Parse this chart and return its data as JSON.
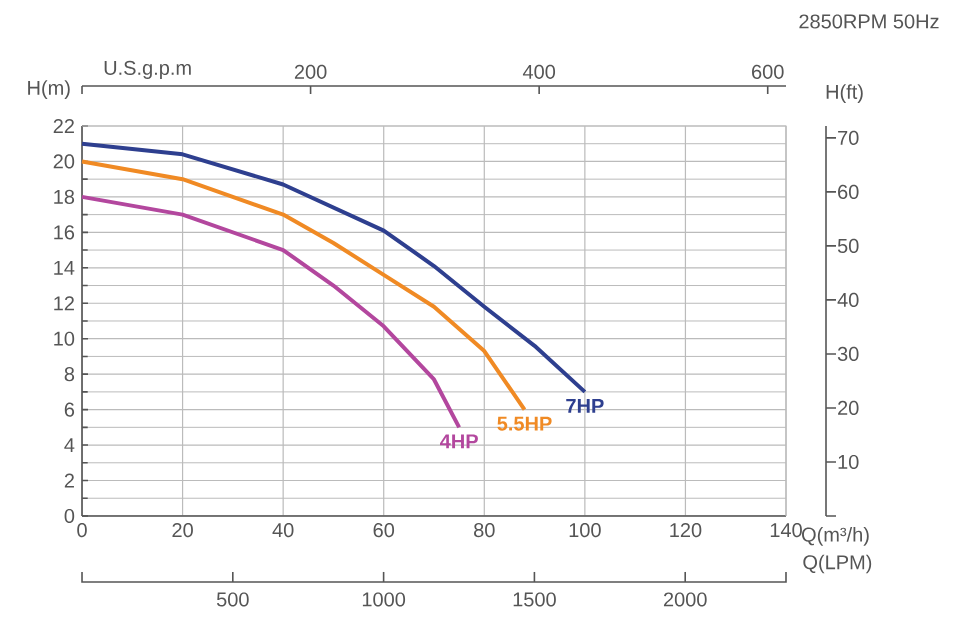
{
  "chart_data": {
    "type": "line",
    "title": "2850RPM  50Hz",
    "xlabel": "Q(m³/h)",
    "ylabel": "H(m)",
    "y2label": "H(ft)",
    "x2label": "U.S.g.p.m",
    "annotations": [
      "500",
      "1000",
      "1500",
      "2000",
      "Q(LPM)"
    ],
    "xlim": [
      0,
      140
    ],
    "xticks": [
      0,
      20,
      40,
      60,
      80,
      100,
      120,
      140
    ],
    "ylim": [
      0,
      22
    ],
    "yticks": [
      0,
      2,
      4,
      6,
      8,
      10,
      12,
      14,
      16,
      18,
      20,
      22
    ],
    "x2lim": [
      0,
      616
    ],
    "x2ticks": [
      {
        "value": 0,
        "label": null
      },
      200,
      400,
      600
    ],
    "y2lim": [
      0,
      72.2
    ],
    "y2ticks": [
      {
        "value": 0,
        "label": null
      },
      10,
      20,
      30,
      40,
      50,
      60,
      70
    ],
    "grid": true,
    "series": [
      {
        "name": "7HP",
        "color": "#2e3f8f",
        "x": [
          0,
          20,
          40,
          60,
          70,
          80,
          90,
          100
        ],
        "values": [
          21.0,
          20.4,
          18.7,
          16.1,
          14.1,
          11.8,
          9.6,
          7.0
        ]
      },
      {
        "name": "5.5HP",
        "color": "#f08a24",
        "x": [
          0,
          20,
          40,
          50,
          60,
          70,
          80,
          88
        ],
        "values": [
          20.0,
          19.0,
          17.0,
          15.4,
          13.6,
          11.8,
          9.3,
          6.0
        ]
      },
      {
        "name": "4HP",
        "color": "#b3479e",
        "x": [
          0,
          20,
          40,
          50,
          60,
          70,
          75
        ],
        "values": [
          18.0,
          17.0,
          15.0,
          13.0,
          10.7,
          7.7,
          5.0
        ]
      }
    ]
  }
}
